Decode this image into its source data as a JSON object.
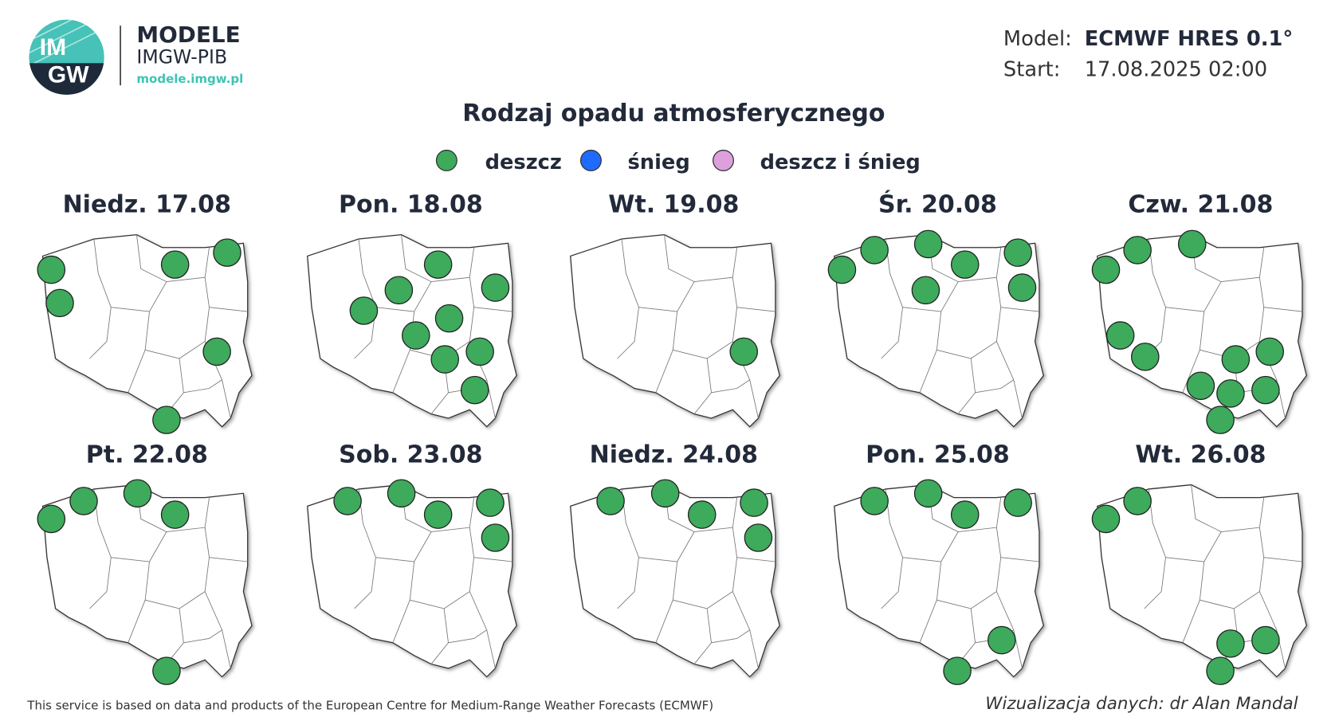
{
  "header": {
    "logo": [
      "IM",
      "GW"
    ],
    "brand": "MODELE",
    "subbrand": "IMGW-PIB",
    "url": "modele.imgw.pl"
  },
  "model": {
    "label": "Model:",
    "value": "ECMWF HRES 0.1°"
  },
  "start": {
    "label": "Start:",
    "value": "17.08.2025 02:00"
  },
  "title": "Rodzaj opadu atmosferycznego",
  "legend": [
    {
      "label": "deszcz",
      "color": "#3daa5c"
    },
    {
      "label": "śnieg",
      "color": "#1f6bff"
    },
    {
      "label": "deszcz i śnieg",
      "color": "#dda0dd"
    }
  ],
  "panels": [
    {
      "date": "Niedz. 17.08"
    },
    {
      "date": "Pon. 18.08"
    },
    {
      "date": "Wt. 19.08"
    },
    {
      "date": "Śr. 20.08"
    },
    {
      "date": "Czw. 21.08"
    },
    {
      "date": "Pt. 22.08"
    },
    {
      "date": "Sob. 23.08"
    },
    {
      "date": "Niedz. 24.08"
    },
    {
      "date": "Pon. 25.08"
    },
    {
      "date": "Wt. 26.08"
    }
  ],
  "footer": {
    "source": "This service is based on data and products of the European Centre for Medium-Range Weather Forecasts (ECMWF)",
    "credit": "Wizualizacja danych: dr Alan Mandal"
  }
}
